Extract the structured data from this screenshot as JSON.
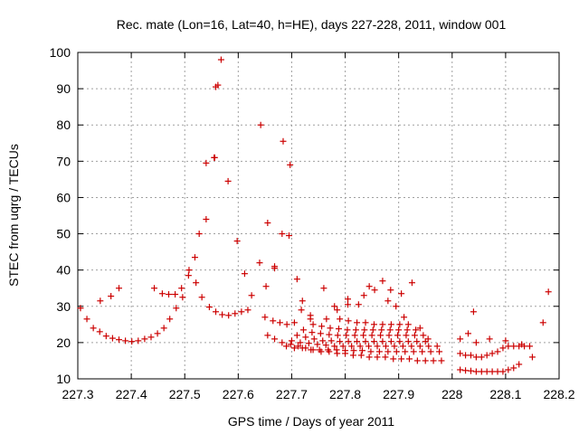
{
  "chart_data": {
    "type": "scatter",
    "title": "Rec. mate (Lon=16, Lat=40, h=HE), days 227-228, 2011, window 001",
    "xlabel": "GPS time / Days of year 2011",
    "ylabel": "STEC from uqrg / TECUs",
    "xlim": [
      227.3,
      228.2
    ],
    "ylim": [
      10,
      100
    ],
    "xticks": [
      227.3,
      227.4,
      227.5,
      227.6,
      227.7,
      227.8,
      227.9,
      228.0,
      228.1,
      228.2
    ],
    "xtick_labels": [
      "227.3",
      "227.4",
      "227.5",
      "227.6",
      "227.7",
      "227.8",
      "227.9",
      "228",
      "228.1",
      "228.2"
    ],
    "yticks": [
      10,
      20,
      30,
      40,
      50,
      60,
      70,
      80,
      90,
      100
    ],
    "ytick_labels": [
      "10",
      "20",
      "30",
      "40",
      "50",
      "60",
      "70",
      "80",
      "90",
      "100"
    ],
    "grid": true,
    "marker": "+",
    "color": "#cc0000",
    "series": [
      {
        "x": [
          227.305,
          227.317,
          227.329,
          227.341,
          227.353,
          227.365,
          227.377,
          227.389,
          227.401,
          227.413,
          227.425,
          227.437,
          227.449,
          227.461,
          227.472,
          227.484,
          227.496,
          227.342,
          227.362,
          227.377,
          227.443,
          227.458,
          227.47,
          227.482,
          227.494,
          227.507,
          227.521,
          227.532,
          227.546,
          227.558,
          227.57,
          227.582,
          227.594,
          227.606,
          227.618,
          227.508,
          227.519,
          227.527,
          227.54,
          227.555,
          227.562,
          227.568,
          227.581,
          227.598,
          227.612,
          227.625,
          227.54,
          227.556,
          227.558,
          227.642,
          227.655,
          227.668,
          227.684,
          227.697,
          227.64,
          227.652,
          227.668,
          227.682,
          227.695,
          227.71,
          227.655,
          227.668,
          227.682,
          227.698,
          227.712,
          227.726,
          227.74,
          227.755,
          227.77,
          227.785,
          227.8,
          227.815,
          227.83,
          227.845,
          227.86,
          227.875,
          227.89,
          227.905,
          227.92,
          227.935,
          227.95,
          227.965,
          227.98,
          227.69,
          227.705,
          227.72,
          227.736,
          227.752,
          227.768,
          227.784,
          227.8,
          227.816,
          227.832,
          227.848,
          227.864,
          227.88,
          227.896,
          227.912,
          227.928,
          227.944,
          227.96,
          227.976,
          227.7,
          227.716,
          227.732,
          227.748,
          227.764,
          227.78,
          227.796,
          227.812,
          227.828,
          227.844,
          227.86,
          227.876,
          227.892,
          227.908,
          227.924,
          227.94,
          227.956,
          227.972,
          227.71,
          227.726,
          227.742,
          227.758,
          227.774,
          227.79,
          227.806,
          227.822,
          227.838,
          227.854,
          227.87,
          227.886,
          227.902,
          227.918,
          227.934,
          227.95,
          227.722,
          227.738,
          227.754,
          227.77,
          227.786,
          227.802,
          227.818,
          227.834,
          227.85,
          227.866,
          227.882,
          227.898,
          227.914,
          227.93,
          227.946,
          227.74,
          227.756,
          227.772,
          227.788,
          227.804,
          227.82,
          227.836,
          227.852,
          227.868,
          227.884,
          227.9,
          227.916,
          227.932,
          227.79,
          227.806,
          227.822,
          227.838,
          227.854,
          227.87,
          227.886,
          227.902,
          227.918,
          227.65,
          227.665,
          227.678,
          227.691,
          227.705,
          227.718,
          227.735,
          227.765,
          227.785,
          227.805,
          227.835,
          227.855,
          227.87,
          227.885,
          227.905,
          227.925,
          227.94,
          227.955,
          227.72,
          227.735,
          227.76,
          227.78,
          227.805,
          227.825,
          227.845,
          227.88,
          227.895,
          227.91,
          228.015,
          228.025,
          228.035,
          228.045,
          228.055,
          228.065,
          228.075,
          228.085,
          228.095,
          228.105,
          228.115,
          228.125,
          228.015,
          228.025,
          228.035,
          228.045,
          228.055,
          228.065,
          228.075,
          228.085,
          228.095,
          228.105,
          228.115,
          228.125,
          228.135,
          228.145,
          228.015,
          228.03,
          228.045,
          228.04,
          228.07,
          228.1,
          228.13,
          228.15,
          228.17,
          228.18
        ],
        "y": [
          29.5,
          26.5,
          24.0,
          23.0,
          21.8,
          21.2,
          20.8,
          20.5,
          20.3,
          20.5,
          21.0,
          21.5,
          22.5,
          24.0,
          26.5,
          29.5,
          32.5,
          31.5,
          32.8,
          35.0,
          35.0,
          33.5,
          33.3,
          33.3,
          35.0,
          38.5,
          36.5,
          32.5,
          29.8,
          28.5,
          27.7,
          27.5,
          28.0,
          28.5,
          29.0,
          40.0,
          43.5,
          50.0,
          54.0,
          71.0,
          91.0,
          98.0,
          64.5,
          48.0,
          39.0,
          33.0,
          69.5,
          71.0,
          90.5,
          80.0,
          53.0,
          41.0,
          75.5,
          69.0,
          42.0,
          35.5,
          40.5,
          50.0,
          49.5,
          37.5,
          22.0,
          21.0,
          20.0,
          19.5,
          19.0,
          18.5,
          18.0,
          17.5,
          17.5,
          17.0,
          17.0,
          16.5,
          16.5,
          16.0,
          16.0,
          16.0,
          15.5,
          15.5,
          15.5,
          15.0,
          15.0,
          15.0,
          15.0,
          19.0,
          18.5,
          18.5,
          18.0,
          18.0,
          18.0,
          18.0,
          17.8,
          17.8,
          17.8,
          17.5,
          17.5,
          17.5,
          17.5,
          17.5,
          17.5,
          17.5,
          17.5,
          17.5,
          20.5,
          20.0,
          19.8,
          19.5,
          19.3,
          19.0,
          19.0,
          19.0,
          19.0,
          19.0,
          19.0,
          19.0,
          19.0,
          19.0,
          19.0,
          19.0,
          19.0,
          19.0,
          22.0,
          21.5,
          21.0,
          20.5,
          20.5,
          20.3,
          20.3,
          20.3,
          20.3,
          20.3,
          20.3,
          20.3,
          20.3,
          20.3,
          20.3,
          20.3,
          23.5,
          22.8,
          22.5,
          22.2,
          22.0,
          22.0,
          22.0,
          22.0,
          22.0,
          22.0,
          22.0,
          22.0,
          22.0,
          22.0,
          22.0,
          25.0,
          24.5,
          24.0,
          23.8,
          23.5,
          23.5,
          23.5,
          23.5,
          23.5,
          23.5,
          23.5,
          23.5,
          23.5,
          26.5,
          26.0,
          25.5,
          25.5,
          25.0,
          25.0,
          25.0,
          25.0,
          25.0,
          27.0,
          26.0,
          25.5,
          25.0,
          25.5,
          29.0,
          27.5,
          26.5,
          29.0,
          30.5,
          33.0,
          34.5,
          37.0,
          34.5,
          33.5,
          36.5,
          24.0,
          21.0,
          31.5,
          26.5,
          35.0,
          30.0,
          32.0,
          30.5,
          35.5,
          31.5,
          30.0,
          27.0,
          12.5,
          12.3,
          12.2,
          12.0,
          12.0,
          12.0,
          12.0,
          12.0,
          12.0,
          12.5,
          13.0,
          14.0,
          17.0,
          16.5,
          16.5,
          16.0,
          16.0,
          16.5,
          17.0,
          17.5,
          18.5,
          19.0,
          19.0,
          19.0,
          19.0,
          19.0,
          21.0,
          22.5,
          20.0,
          28.5,
          21.0,
          20.5,
          19.5,
          16.0,
          25.5,
          34.0
        ]
      }
    ]
  }
}
